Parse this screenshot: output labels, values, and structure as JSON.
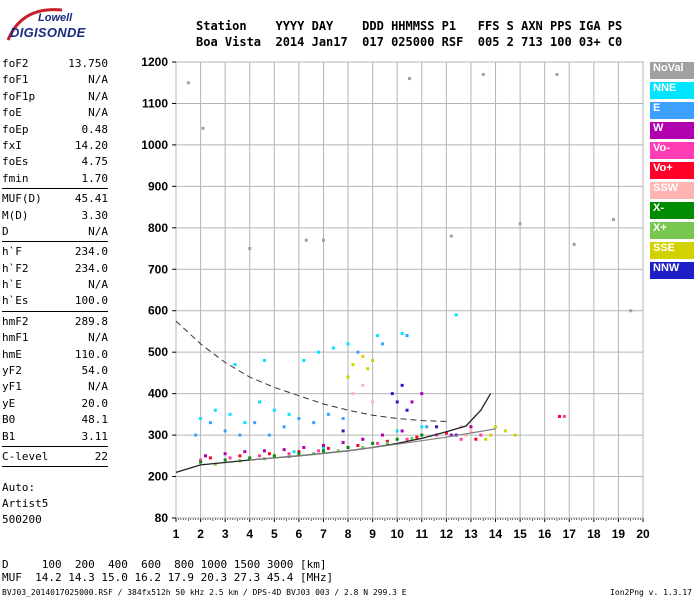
{
  "logo": {
    "line1": "Lowell",
    "line2": "DIGISONDE"
  },
  "header": {
    "line1": "Station    YYYY DAY    DDD HHMMSS P1   FFS S AXN PPS IGA PS",
    "line2": "Boa Vista  2014 Jan17  017 025000 RSF  005 2 713 100 03+ C0"
  },
  "params": {
    "group1": [
      {
        "label": "foF2",
        "value": "13.750"
      },
      {
        "label": "foF1",
        "value": "N/A"
      },
      {
        "label": "foF1p",
        "value": "N/A"
      },
      {
        "label": "foE",
        "value": "N/A"
      },
      {
        "label": "foEp",
        "value": "0.48"
      },
      {
        "label": "fxI",
        "value": "14.20"
      },
      {
        "label": "foEs",
        "value": "4.75"
      },
      {
        "label": "fmin",
        "value": "1.70"
      }
    ],
    "group2": [
      {
        "label": "MUF(D)",
        "value": "45.41"
      },
      {
        "label": "M(D)",
        "value": "3.30"
      },
      {
        "label": "D",
        "value": "N/A"
      }
    ],
    "group3": [
      {
        "label": "h`F",
        "value": "234.0"
      },
      {
        "label": "h`F2",
        "value": "234.0"
      },
      {
        "label": "h`E",
        "value": "N/A"
      },
      {
        "label": "h`Es",
        "value": "100.0"
      }
    ],
    "group4": [
      {
        "label": "hmF2",
        "value": "289.8"
      },
      {
        "label": "hmF1",
        "value": "N/A"
      },
      {
        "label": "hmE",
        "value": "110.0"
      },
      {
        "label": "yF2",
        "value": "54.0"
      },
      {
        "label": "yF1",
        "value": "N/A"
      },
      {
        "label": "yE",
        "value": "20.0"
      },
      {
        "label": "B0",
        "value": "48.1"
      },
      {
        "label": "B1",
        "value": "3.11"
      }
    ],
    "group5": [
      {
        "label": "C-level",
        "value": "22"
      }
    ]
  },
  "auto": {
    "line1": "Auto:",
    "line2": "Artist5",
    "line3": "500200"
  },
  "muf_table": {
    "d_line": "D     100  200  400  600  800 1000 1500 3000 [km]",
    "muf_line": "MUF  14.2 14.3 15.0 16.2 17.9 20.3 27.3 45.4 [MHz]"
  },
  "footer": {
    "left": "BVJ03_2014017025000.RSF / 384fx512h 50 kHz 2.5 km / DPS-4D BVJ03 003 / 2.8 N 299.3 E",
    "right": "Ion2Png v. 1.3.17"
  },
  "legend": [
    {
      "label": "NoVal",
      "color": "#a0a0a0"
    },
    {
      "label": "NNE",
      "color": "#00e5ff"
    },
    {
      "label": "E",
      "color": "#3ca0ff"
    },
    {
      "label": "W",
      "color": "#b000b0"
    },
    {
      "label": "Vo-",
      "color": "#ff3cb4"
    },
    {
      "label": "Vo+",
      "color": "#ff0028"
    },
    {
      "label": "SSW",
      "color": "#ffb4b4"
    },
    {
      "label": "X-",
      "color": "#008c00"
    },
    {
      "label": "X+",
      "color": "#78c850"
    },
    {
      "label": "SSE",
      "color": "#d2d200"
    },
    {
      "label": "NNW",
      "color": "#1e1ec8"
    }
  ],
  "chart_data": {
    "type": "scatter",
    "title": "",
    "xlabel": "",
    "ylabel": "",
    "xlim": [
      1,
      20
    ],
    "ylim": [
      80,
      1200
    ],
    "x_ticks": [
      1,
      2,
      3,
      4,
      5,
      6,
      7,
      8,
      9,
      10,
      11,
      12,
      13,
      14,
      15,
      16,
      17,
      18,
      19,
      20
    ],
    "y_ticks": [
      80,
      200,
      300,
      400,
      500,
      600,
      700,
      800,
      900,
      1000,
      1100,
      1200
    ],
    "grid": true,
    "legend_position": "right",
    "series": [
      {
        "name": "NNE",
        "points": [
          [
            2.0,
            340
          ],
          [
            2.6,
            360
          ],
          [
            3.2,
            350
          ],
          [
            3.8,
            330
          ],
          [
            4.4,
            380
          ],
          [
            5.0,
            360
          ],
          [
            5.6,
            350
          ],
          [
            6.2,
            480
          ],
          [
            6.8,
            500
          ],
          [
            7.4,
            510
          ],
          [
            8.0,
            520
          ],
          [
            9.2,
            540
          ],
          [
            10.2,
            545
          ],
          [
            3.4,
            470
          ],
          [
            4.6,
            480
          ],
          [
            5.8,
            260
          ],
          [
            7.0,
            270
          ],
          [
            8.6,
            290
          ],
          [
            10.0,
            310
          ],
          [
            11.0,
            320
          ],
          [
            12.4,
            590
          ]
        ]
      },
      {
        "name": "E",
        "points": [
          [
            1.8,
            300
          ],
          [
            2.4,
            330
          ],
          [
            3.0,
            310
          ],
          [
            3.6,
            300
          ],
          [
            4.2,
            330
          ],
          [
            4.8,
            300
          ],
          [
            5.4,
            320
          ],
          [
            6.0,
            340
          ],
          [
            6.6,
            330
          ],
          [
            7.2,
            350
          ],
          [
            7.8,
            340
          ],
          [
            8.4,
            500
          ],
          [
            9.4,
            520
          ],
          [
            10.4,
            540
          ],
          [
            11.2,
            320
          ]
        ]
      },
      {
        "name": "W",
        "points": [
          [
            2.2,
            250
          ],
          [
            3.0,
            255
          ],
          [
            3.8,
            260
          ],
          [
            4.6,
            262
          ],
          [
            5.4,
            265
          ],
          [
            6.2,
            270
          ],
          [
            7.0,
            275
          ],
          [
            7.8,
            282
          ],
          [
            8.6,
            290
          ],
          [
            9.4,
            300
          ],
          [
            10.2,
            310
          ],
          [
            10.6,
            380
          ],
          [
            11.0,
            400
          ],
          [
            12.2,
            300
          ],
          [
            13.0,
            320
          ]
        ]
      },
      {
        "name": "Vo-",
        "points": [
          [
            2.0,
            240
          ],
          [
            3.2,
            245
          ],
          [
            4.4,
            250
          ],
          [
            5.6,
            255
          ],
          [
            6.8,
            262
          ],
          [
            8.0,
            270
          ],
          [
            9.2,
            280
          ],
          [
            10.4,
            290
          ],
          [
            11.6,
            300
          ],
          [
            12.6,
            290
          ],
          [
            13.4,
            300
          ],
          [
            16.8,
            345
          ]
        ]
      },
      {
        "name": "Vo+",
        "points": [
          [
            2.4,
            245
          ],
          [
            3.6,
            250
          ],
          [
            4.8,
            255
          ],
          [
            6.0,
            260
          ],
          [
            7.2,
            268
          ],
          [
            8.4,
            275
          ],
          [
            9.6,
            285
          ],
          [
            10.8,
            295
          ],
          [
            12.0,
            305
          ],
          [
            13.2,
            290
          ],
          [
            16.6,
            345
          ]
        ]
      },
      {
        "name": "SSW",
        "points": [
          [
            8.2,
            400
          ],
          [
            8.6,
            420
          ],
          [
            9.0,
            380
          ],
          [
            12.8,
            300
          ],
          [
            13.0,
            310
          ],
          [
            12.6,
            320
          ]
        ]
      },
      {
        "name": "X-",
        "points": [
          [
            2.0,
            235
          ],
          [
            3.0,
            240
          ],
          [
            4.0,
            245
          ],
          [
            5.0,
            250
          ],
          [
            6.0,
            255
          ],
          [
            7.0,
            262
          ],
          [
            8.0,
            270
          ],
          [
            9.0,
            280
          ],
          [
            10.0,
            290
          ],
          [
            11.0,
            300
          ]
        ]
      },
      {
        "name": "X+",
        "points": [
          [
            2.6,
            230
          ],
          [
            3.6,
            238
          ],
          [
            4.6,
            243
          ],
          [
            5.6,
            248
          ],
          [
            6.6,
            255
          ],
          [
            7.6,
            262
          ],
          [
            8.6,
            270
          ],
          [
            9.6,
            280
          ],
          [
            10.6,
            292
          ]
        ]
      },
      {
        "name": "SSE",
        "points": [
          [
            8.0,
            440
          ],
          [
            8.2,
            470
          ],
          [
            8.6,
            490
          ],
          [
            8.8,
            460
          ],
          [
            9.0,
            480
          ],
          [
            13.8,
            300
          ],
          [
            14.0,
            320
          ],
          [
            14.4,
            310
          ],
          [
            14.8,
            300
          ],
          [
            13.6,
            290
          ]
        ]
      },
      {
        "name": "NNW",
        "points": [
          [
            7.8,
            310
          ],
          [
            9.8,
            400
          ],
          [
            10.0,
            380
          ],
          [
            10.2,
            420
          ],
          [
            10.4,
            360
          ],
          [
            11.6,
            320
          ],
          [
            12.4,
            300
          ]
        ]
      },
      {
        "name": "NoVal",
        "points": [
          [
            1.5,
            1150
          ],
          [
            2.1,
            1040
          ],
          [
            4.0,
            750
          ],
          [
            6.3,
            770
          ],
          [
            7.0,
            770
          ],
          [
            10.5,
            1160
          ],
          [
            12.2,
            780
          ],
          [
            13.5,
            1170
          ],
          [
            15.0,
            810
          ],
          [
            16.5,
            1170
          ],
          [
            17.2,
            760
          ],
          [
            18.8,
            820
          ],
          [
            19.5,
            600
          ]
        ]
      }
    ],
    "traces": [
      {
        "name": "profile",
        "x": [
          1.0,
          2.0,
          3.0,
          4.0,
          5.0,
          6.0,
          7.0,
          8.0,
          9.0,
          10.0,
          11.0,
          12.0,
          12.8,
          13.4,
          13.8
        ],
        "y": [
          210,
          228,
          234,
          240,
          245,
          250,
          256,
          262,
          270,
          280,
          292,
          308,
          322,
          360,
          400
        ]
      },
      {
        "name": "dashed",
        "x": [
          1.0,
          2.0,
          3.0,
          4.0,
          5.0,
          6.0,
          7.0,
          8.0,
          9.0,
          10.0,
          11.0,
          12.0
        ],
        "y": [
          575,
          520,
          475,
          440,
          415,
          395,
          375,
          360,
          348,
          340,
          335,
          333
        ]
      },
      {
        "name": "gray",
        "x": [
          4.0,
          6.0,
          8.0,
          10.0,
          12.0,
          13.0,
          14.0
        ],
        "y": [
          240,
          250,
          262,
          278,
          295,
          305,
          315
        ]
      }
    ]
  }
}
